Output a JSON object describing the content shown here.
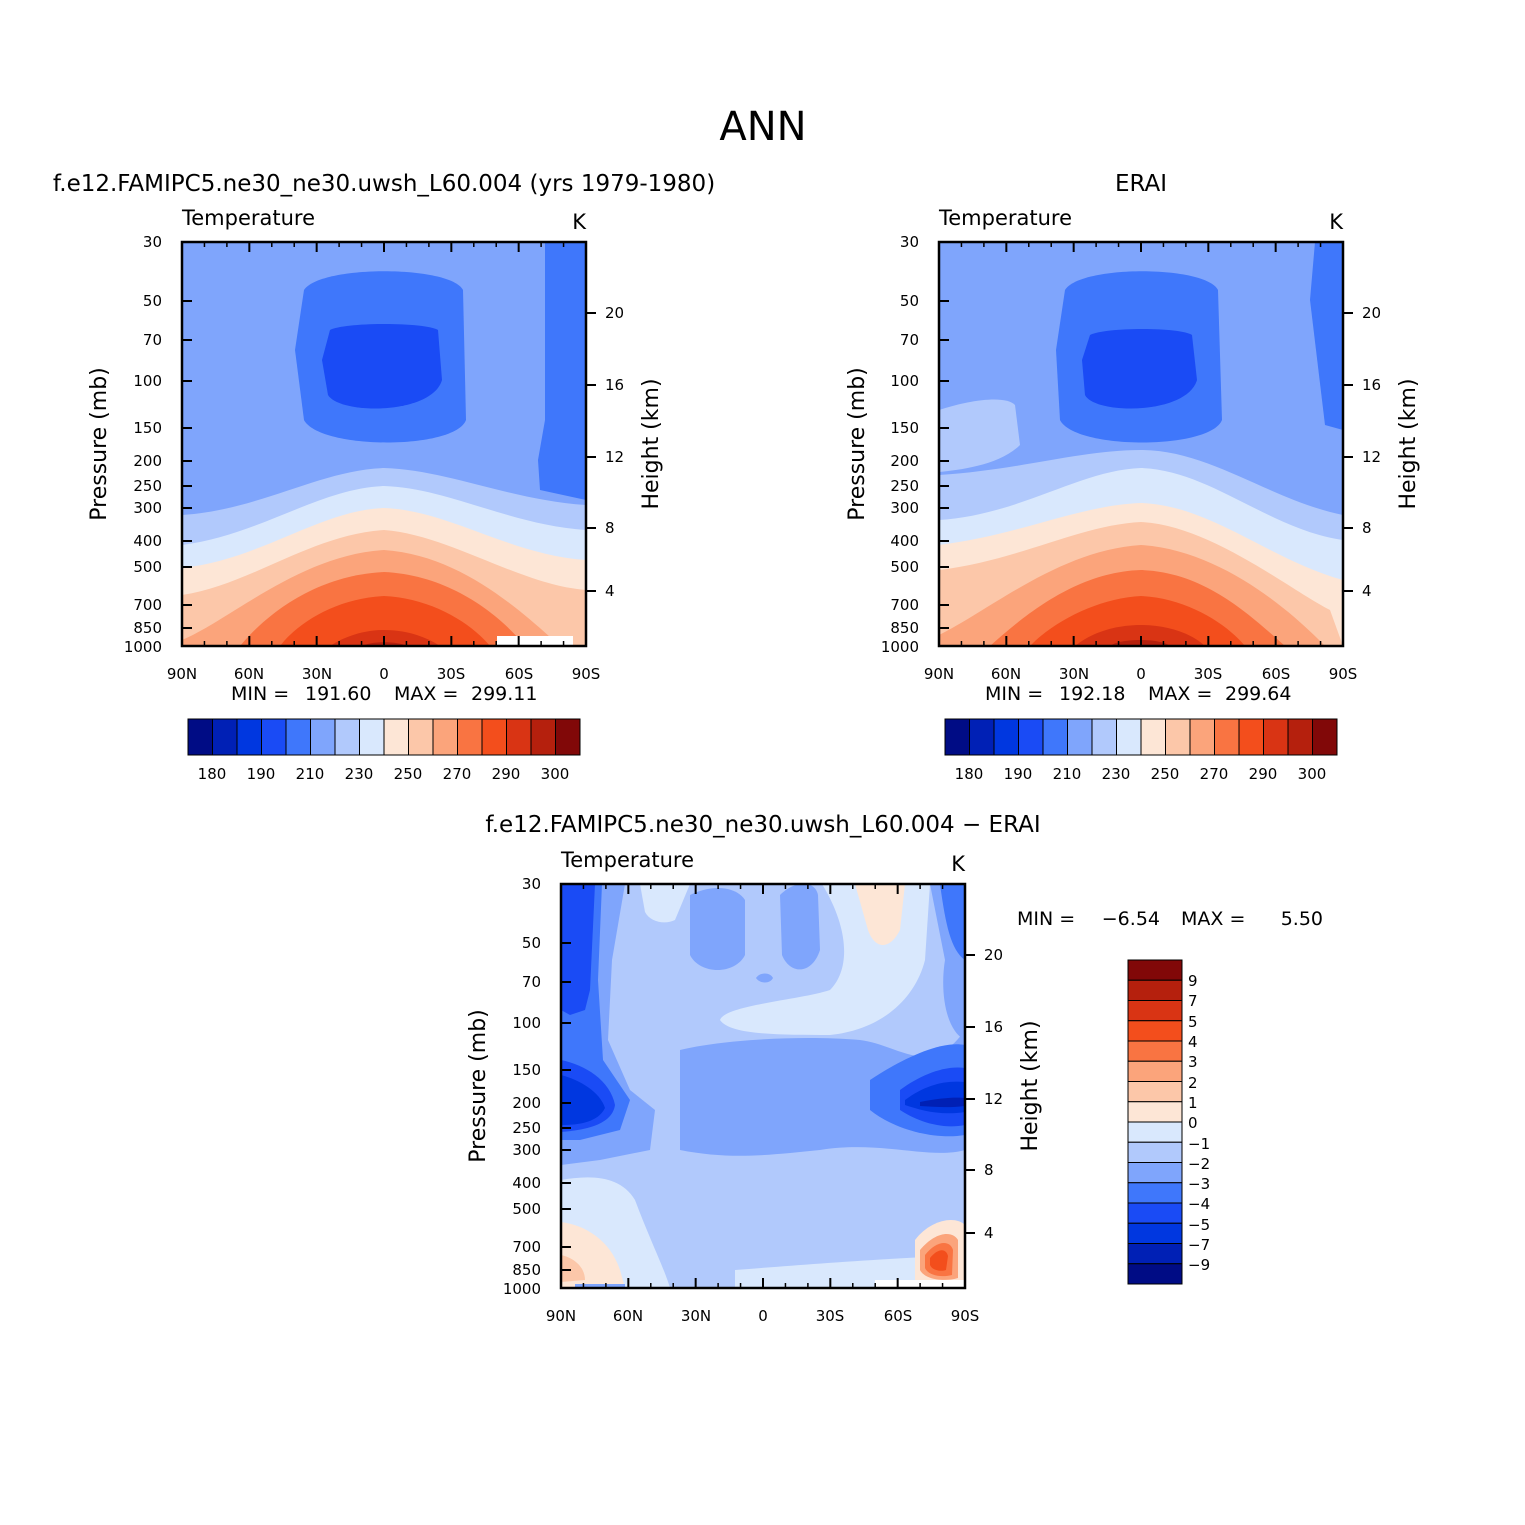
{
  "figure": {
    "title": "ANN"
  },
  "colors": {
    "palette": [
      "#000c85",
      "#0020b5",
      "#0037e0",
      "#1a4bf5",
      "#3f77fb",
      "#7fa5fc",
      "#b1c9fc",
      "#d9e8fd",
      "#fde6d6",
      "#fcc7a9",
      "#fba47b",
      "#f97442",
      "#f34e1c",
      "#d93414",
      "#b5200d",
      "#810808"
    ]
  },
  "chart_data": [
    {
      "type": "contour",
      "panel": "model",
      "title": "f.e12.FAMIPC5.ne30_ne30.uwsh_L60.004 (yrs 1979-1980)",
      "variable": "Temperature",
      "units": "K",
      "x_ticks": [
        "90N",
        "60N",
        "30N",
        "0",
        "30S",
        "60S",
        "90S"
      ],
      "y_ticks": [
        "30",
        "50",
        "70",
        "100",
        "150",
        "200",
        "250",
        "300",
        "400",
        "500",
        "700",
        "850",
        "1000"
      ],
      "ylabel": "Pressure (mb)",
      "y2label": "Height (km)",
      "y2_ticks": [
        "20",
        "16",
        "12",
        "8",
        "4"
      ],
      "min_label": "MIN =",
      "min_value": "191.60",
      "max_label": "MAX =",
      "max_value": "299.11",
      "colorbar_labels": [
        "180",
        "190",
        "210",
        "230",
        "250",
        "270",
        "290",
        "300"
      ]
    },
    {
      "type": "contour",
      "panel": "obs",
      "title": "ERAI",
      "variable": "Temperature",
      "units": "K",
      "x_ticks": [
        "90N",
        "60N",
        "30N",
        "0",
        "30S",
        "60S",
        "90S"
      ],
      "y_ticks": [
        "30",
        "50",
        "70",
        "100",
        "150",
        "200",
        "250",
        "300",
        "400",
        "500",
        "700",
        "850",
        "1000"
      ],
      "ylabel": "Pressure (mb)",
      "y2label": "Height (km)",
      "y2_ticks": [
        "20",
        "16",
        "12",
        "8",
        "4"
      ],
      "min_label": "MIN =",
      "min_value": "192.18",
      "max_label": "MAX =",
      "max_value": "299.64",
      "colorbar_labels": [
        "180",
        "190",
        "210",
        "230",
        "250",
        "270",
        "290",
        "300"
      ]
    },
    {
      "type": "contour",
      "panel": "difference",
      "title": "f.e12.FAMIPC5.ne30_ne30.uwsh_L60.004 − ERAI",
      "variable": "Temperature",
      "units": "K",
      "x_ticks": [
        "90N",
        "60N",
        "30N",
        "0",
        "30S",
        "60S",
        "90S"
      ],
      "y_ticks": [
        "30",
        "50",
        "70",
        "100",
        "150",
        "200",
        "250",
        "300",
        "400",
        "500",
        "700",
        "850",
        "1000"
      ],
      "ylabel": "Pressure (mb)",
      "y2label": "Height (km)",
      "y2_ticks": [
        "20",
        "16",
        "12",
        "8",
        "4"
      ],
      "min_label": "MIN =",
      "min_value": "−6.54",
      "max_label": "MAX =",
      "max_value": "5.50",
      "colorbar_labels": [
        "9",
        "7",
        "5",
        "4",
        "3",
        "2",
        "1",
        "0",
        "−1",
        "−2",
        "−3",
        "−4",
        "−5",
        "−7",
        "−9"
      ]
    }
  ]
}
